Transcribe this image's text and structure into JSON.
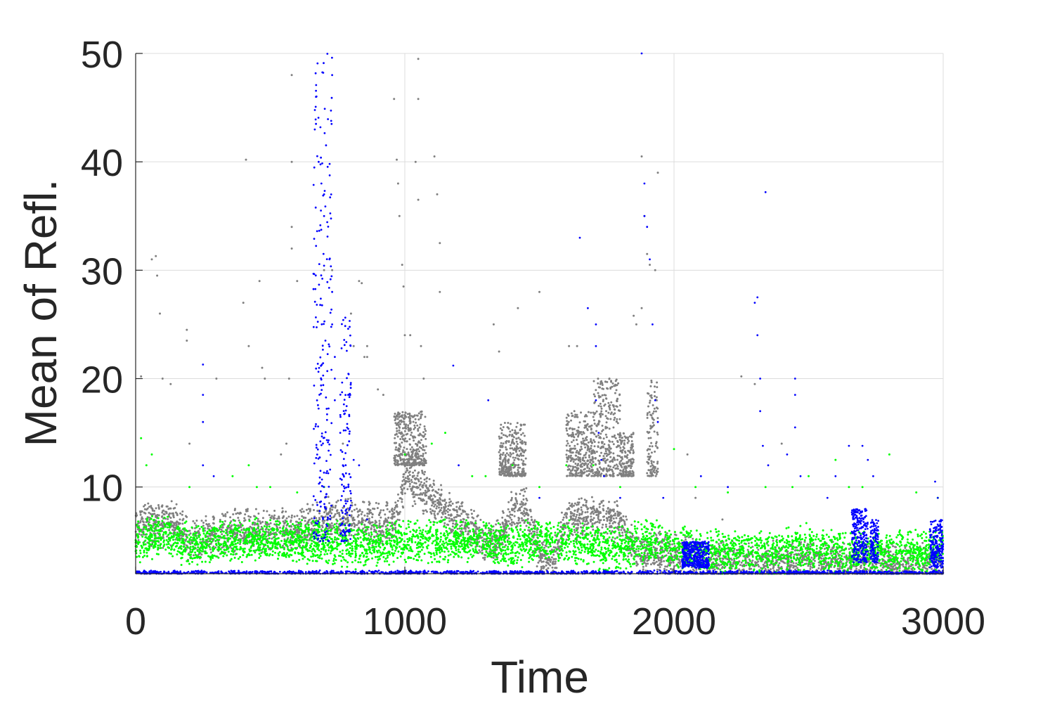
{
  "chart_data": {
    "type": "scatter",
    "title": "",
    "xlabel": "Time",
    "ylabel": "Mean of Refl.",
    "xlim": [
      0,
      3000
    ],
    "ylim": [
      2,
      50
    ],
    "xticks": [
      "0",
      "1000",
      "2000",
      "3000"
    ],
    "yticks": [
      "10",
      "20",
      "30",
      "40",
      "50"
    ],
    "grid": true,
    "legend": "none",
    "colors": {
      "gray": "#808080",
      "green": "#00ff00",
      "blue": "#0000ff"
    },
    "series": [
      {
        "color": "#808080",
        "baseline": [
          [
            0,
            6.5
          ],
          [
            150,
            6.5
          ],
          [
            200,
            5
          ],
          [
            300,
            5.5
          ],
          [
            400,
            6
          ],
          [
            500,
            6
          ],
          [
            600,
            6
          ],
          [
            700,
            7
          ],
          [
            800,
            7
          ],
          [
            900,
            6.5
          ],
          [
            960,
            6.5
          ],
          [
            1000,
            11
          ],
          [
            1100,
            9
          ],
          [
            1200,
            7
          ],
          [
            1250,
            6
          ],
          [
            1300,
            5
          ],
          [
            1350,
            5
          ],
          [
            1400,
            8
          ],
          [
            1450,
            8
          ],
          [
            1500,
            4
          ],
          [
            1550,
            3
          ],
          [
            1600,
            7
          ],
          [
            1700,
            7
          ],
          [
            1800,
            7
          ],
          [
            1850,
            4
          ],
          [
            1900,
            4
          ],
          [
            2000,
            4
          ],
          [
            2100,
            3
          ],
          [
            2200,
            3
          ],
          [
            2400,
            3
          ],
          [
            2600,
            3
          ],
          [
            2800,
            2.8
          ],
          [
            3000,
            2.8
          ]
        ],
        "outliers": [
          [
            20,
            20.2
          ],
          [
            60,
            31
          ],
          [
            75,
            31.3
          ],
          [
            80,
            29.5
          ],
          [
            90,
            26
          ],
          [
            100,
            20
          ],
          [
            130,
            19.5
          ],
          [
            190,
            24.5
          ],
          [
            190,
            23.5
          ],
          [
            200,
            14
          ],
          [
            300,
            20
          ],
          [
            400,
            27
          ],
          [
            410,
            40.2
          ],
          [
            420,
            23
          ],
          [
            460,
            29
          ],
          [
            470,
            21
          ],
          [
            480,
            20
          ],
          [
            540,
            13
          ],
          [
            560,
            14
          ],
          [
            570,
            20
          ],
          [
            580,
            48
          ],
          [
            580,
            40
          ],
          [
            580,
            32
          ],
          [
            580,
            34
          ],
          [
            600,
            29
          ],
          [
            700,
            30
          ],
          [
            730,
            30
          ],
          [
            770,
            14
          ],
          [
            800,
            26
          ],
          [
            810,
            23
          ],
          [
            830,
            29
          ],
          [
            840,
            28.8
          ],
          [
            850,
            22
          ],
          [
            860,
            22
          ],
          [
            860,
            23
          ],
          [
            900,
            19
          ],
          [
            920,
            18.5
          ],
          [
            960,
            45.8
          ],
          [
            970,
            40.2
          ],
          [
            975,
            38
          ],
          [
            980,
            35
          ],
          [
            990,
            30.5
          ],
          [
            995,
            28.5
          ],
          [
            1000,
            24
          ],
          [
            1020,
            24
          ],
          [
            1040,
            40
          ],
          [
            1050,
            49.5
          ],
          [
            1050,
            45.8
          ],
          [
            1050,
            36.5
          ],
          [
            1060,
            23
          ],
          [
            1070,
            20
          ],
          [
            1110,
            40.5
          ],
          [
            1120,
            37
          ],
          [
            1130,
            32.5
          ],
          [
            1130,
            28
          ],
          [
            1330,
            25
          ],
          [
            1350,
            22.5
          ],
          [
            1420,
            26.5
          ],
          [
            1500,
            28
          ],
          [
            1610,
            23
          ],
          [
            1640,
            23
          ],
          [
            1700,
            15
          ],
          [
            1760,
            20
          ],
          [
            1850,
            25.8
          ],
          [
            1860,
            25
          ],
          [
            1880,
            26.5
          ],
          [
            1880,
            40.5
          ],
          [
            1890,
            35
          ],
          [
            1900,
            31.5
          ],
          [
            1910,
            30.5
          ],
          [
            1930,
            30
          ],
          [
            1940,
            39
          ],
          [
            2050,
            13
          ],
          [
            2080,
            9
          ],
          [
            2180,
            7
          ],
          [
            2250,
            20.2
          ],
          [
            2300,
            19.5
          ],
          [
            2400,
            14
          ]
        ],
        "spikes": [
          [
            960,
            1080,
            12,
            17
          ],
          [
            1350,
            1450,
            11,
            16
          ],
          [
            1600,
            1700,
            11,
            17
          ],
          [
            1700,
            1800,
            11,
            20
          ],
          [
            1800,
            1850,
            11,
            15
          ],
          [
            1900,
            1940,
            11,
            20
          ]
        ]
      },
      {
        "color": "#00ff00",
        "baseline": [
          [
            0,
            5
          ],
          [
            100,
            5.5
          ],
          [
            200,
            4.5
          ],
          [
            300,
            5
          ],
          [
            400,
            5
          ],
          [
            500,
            5
          ],
          [
            600,
            5
          ],
          [
            700,
            5
          ],
          [
            800,
            4.5
          ],
          [
            900,
            4.5
          ],
          [
            1000,
            5
          ],
          [
            1100,
            5
          ],
          [
            1200,
            5
          ],
          [
            1300,
            5
          ],
          [
            1400,
            4.5
          ],
          [
            1500,
            5
          ],
          [
            1600,
            5
          ],
          [
            1700,
            4.5
          ],
          [
            1800,
            4.5
          ],
          [
            1900,
            5
          ],
          [
            2000,
            4.5
          ],
          [
            2100,
            4
          ],
          [
            2200,
            4
          ],
          [
            2300,
            4
          ],
          [
            2400,
            4
          ],
          [
            2500,
            4.5
          ],
          [
            2600,
            4
          ],
          [
            2700,
            4
          ],
          [
            2800,
            4
          ],
          [
            2900,
            4
          ],
          [
            3000,
            4
          ]
        ],
        "outliers": [
          [
            20,
            14.5
          ],
          [
            40,
            12
          ],
          [
            60,
            13
          ],
          [
            200,
            10
          ],
          [
            360,
            11
          ],
          [
            420,
            12
          ],
          [
            450,
            10
          ],
          [
            500,
            10
          ],
          [
            600,
            9.5
          ],
          [
            700,
            10
          ],
          [
            1000,
            13
          ],
          [
            1100,
            14
          ],
          [
            1150,
            15
          ],
          [
            1250,
            11
          ],
          [
            1300,
            11
          ],
          [
            1400,
            12
          ],
          [
            1500,
            10
          ],
          [
            1600,
            12
          ],
          [
            1700,
            12
          ],
          [
            1800,
            10
          ],
          [
            2000,
            13.5
          ],
          [
            2080,
            10
          ],
          [
            2200,
            9.5
          ],
          [
            2340,
            10
          ],
          [
            2440,
            10
          ],
          [
            2500,
            11
          ],
          [
            2600,
            12.5
          ],
          [
            2650,
            10
          ],
          [
            2700,
            10
          ],
          [
            2800,
            13
          ],
          [
            2900,
            9.5
          ],
          [
            2980,
            9
          ]
        ]
      },
      {
        "color": "#0000ff",
        "baseline": [
          [
            0,
            2.1
          ],
          [
            3000,
            2.1
          ]
        ],
        "outliers": [
          [
            250,
            21.3
          ],
          [
            250,
            18.5
          ],
          [
            250,
            16
          ],
          [
            250,
            12
          ],
          [
            290,
            11
          ],
          [
            670,
            46
          ],
          [
            670,
            43.5
          ],
          [
            680,
            40
          ],
          [
            690,
            38
          ],
          [
            700,
            37
          ],
          [
            700,
            35
          ],
          [
            720,
            31
          ],
          [
            730,
            28
          ],
          [
            730,
            25
          ],
          [
            740,
            22
          ],
          [
            740,
            20
          ],
          [
            740,
            18
          ],
          [
            760,
            15
          ],
          [
            770,
            12
          ],
          [
            790,
            10
          ],
          [
            810,
            12.5
          ],
          [
            830,
            12
          ],
          [
            860,
            7
          ],
          [
            1180,
            21.2
          ],
          [
            1200,
            12
          ],
          [
            1310,
            18
          ],
          [
            1500,
            9
          ],
          [
            1650,
            33
          ],
          [
            1680,
            26.5
          ],
          [
            1710,
            25
          ],
          [
            1710,
            23
          ],
          [
            1710,
            18
          ],
          [
            1720,
            15
          ],
          [
            1730,
            12.5
          ],
          [
            1740,
            11
          ],
          [
            1800,
            9
          ],
          [
            1880,
            50
          ],
          [
            1890,
            38
          ],
          [
            1890,
            35
          ],
          [
            1900,
            34
          ],
          [
            1910,
            31
          ],
          [
            1920,
            25
          ],
          [
            1930,
            18
          ],
          [
            1940,
            16
          ],
          [
            1960,
            9
          ],
          [
            2100,
            11
          ],
          [
            2200,
            10
          ],
          [
            2300,
            27
          ],
          [
            2310,
            27.5
          ],
          [
            2310,
            24
          ],
          [
            2320,
            20
          ],
          [
            2320,
            17
          ],
          [
            2330,
            13.8
          ],
          [
            2350,
            12
          ],
          [
            2340,
            37.2
          ],
          [
            2420,
            13
          ],
          [
            2450,
            20
          ],
          [
            2450,
            18.5
          ],
          [
            2450,
            15.5
          ],
          [
            2470,
            11
          ],
          [
            2570,
            9
          ],
          [
            2600,
            11
          ],
          [
            2650,
            13.8
          ],
          [
            2700,
            13.8
          ],
          [
            2720,
            12.5
          ],
          [
            2740,
            11
          ],
          [
            2970,
            10.5
          ],
          [
            2980,
            9
          ]
        ],
        "spikes": [
          [
            660,
            730,
            5,
            50
          ],
          [
            760,
            800,
            5,
            26
          ]
        ],
        "clusters": [
          [
            2030,
            2130,
            2.5,
            5
          ],
          [
            2660,
            2720,
            3,
            8
          ],
          [
            2730,
            2760,
            3,
            7
          ],
          [
            2950,
            3000,
            2.5,
            7
          ]
        ]
      }
    ]
  }
}
